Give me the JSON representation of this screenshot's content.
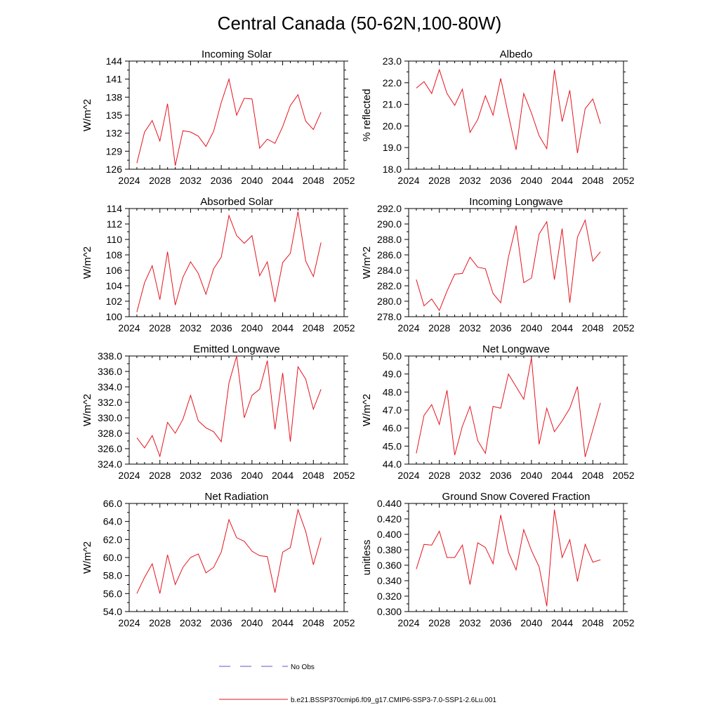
{
  "figure": {
    "title": "Central Canada (50-62N,100-80W)",
    "series_color": "#e4141e",
    "obs_color": "#5a5ac8"
  },
  "legend": {
    "obs_label": "No Obs",
    "model_label": "b.e21.BSSP370cmip6.f09_g17.CMIP6-SSP3-7.0-SSP1-2.6Lu.001"
  },
  "chart_data": [
    {
      "type": "line",
      "title": "Incoming Solar",
      "ylabel": "W/m^2",
      "xlim": [
        2024,
        2052
      ],
      "ylim": [
        126,
        144
      ],
      "xticks": [
        2024,
        2028,
        2032,
        2036,
        2040,
        2044,
        2048,
        2052
      ],
      "xtick_labels": [
        "2024",
        "2028",
        "2032",
        "2036",
        "2040",
        "2044",
        "2048",
        "2052"
      ],
      "yticks": [
        126,
        129,
        132,
        135,
        138,
        141,
        144
      ],
      "ytick_labels": [
        "126",
        "129",
        "132",
        "135",
        "138",
        "141",
        "144"
      ],
      "x": [
        2025,
        2026,
        2027,
        2028,
        2029,
        2030,
        2031,
        2032,
        2033,
        2034,
        2035,
        2036,
        2037,
        2038,
        2039,
        2040,
        2041,
        2042,
        2043,
        2044,
        2045,
        2046,
        2047,
        2048,
        2049
      ],
      "values": [
        127.0,
        132.2,
        134.1,
        130.7,
        136.9,
        126.6,
        132.4,
        132.2,
        131.5,
        129.8,
        132.3,
        137.1,
        141.0,
        135.0,
        137.8,
        137.7,
        129.5,
        131.0,
        130.3,
        133.1,
        136.6,
        138.4,
        134.0,
        132.6,
        135.5
      ]
    },
    {
      "type": "line",
      "title": "Albedo",
      "ylabel": "% reflected",
      "xlim": [
        2024,
        2052
      ],
      "ylim": [
        18.0,
        23.0
      ],
      "xticks": [
        2024,
        2028,
        2032,
        2036,
        2040,
        2044,
        2048,
        2052
      ],
      "xtick_labels": [
        "2024",
        "2028",
        "2032",
        "2036",
        "2040",
        "2044",
        "2048",
        "2052"
      ],
      "yticks": [
        18.0,
        19.0,
        20.0,
        21.0,
        22.0,
        23.0
      ],
      "ytick_labels": [
        "18.0",
        "19.0",
        "20.0",
        "21.0",
        "22.0",
        "23.0"
      ],
      "x": [
        2025,
        2026,
        2027,
        2028,
        2029,
        2030,
        2031,
        2032,
        2033,
        2034,
        2035,
        2036,
        2037,
        2038,
        2039,
        2040,
        2041,
        2042,
        2043,
        2044,
        2045,
        2046,
        2047,
        2048,
        2049
      ],
      "values": [
        21.75,
        22.05,
        21.5,
        22.6,
        21.5,
        20.95,
        21.7,
        19.7,
        20.3,
        21.4,
        20.5,
        22.2,
        20.5,
        18.9,
        21.5,
        20.6,
        19.55,
        18.95,
        22.6,
        20.2,
        21.65,
        18.75,
        20.8,
        21.25,
        20.1
      ]
    },
    {
      "type": "line",
      "title": "Absorbed Solar",
      "ylabel": "W/m^2",
      "xlim": [
        2024,
        2052
      ],
      "ylim": [
        100,
        114
      ],
      "xticks": [
        2024,
        2028,
        2032,
        2036,
        2040,
        2044,
        2048,
        2052
      ],
      "xtick_labels": [
        "2024",
        "2028",
        "2032",
        "2036",
        "2040",
        "2044",
        "2048",
        "2052"
      ],
      "yticks": [
        100,
        102,
        104,
        106,
        108,
        110,
        112,
        114
      ],
      "ytick_labels": [
        "100",
        "102",
        "104",
        "106",
        "108",
        "110",
        "112",
        "114"
      ],
      "x": [
        2025,
        2026,
        2027,
        2028,
        2029,
        2030,
        2031,
        2032,
        2033,
        2034,
        2035,
        2036,
        2037,
        2038,
        2039,
        2040,
        2041,
        2042,
        2043,
        2044,
        2045,
        2046,
        2047,
        2048,
        2049
      ],
      "values": [
        100.6,
        104.4,
        106.6,
        102.2,
        108.4,
        101.5,
        105.1,
        107.1,
        105.6,
        102.9,
        106.2,
        107.7,
        113.1,
        110.5,
        109.5,
        110.5,
        105.3,
        107.1,
        101.9,
        107.0,
        108.2,
        113.6,
        107.2,
        105.2,
        109.6
      ]
    },
    {
      "type": "line",
      "title": "Incoming Longwave",
      "ylabel": "W/m^2",
      "xlim": [
        2024,
        2052
      ],
      "ylim": [
        278.0,
        292.0
      ],
      "xticks": [
        2024,
        2028,
        2032,
        2036,
        2040,
        2044,
        2048,
        2052
      ],
      "xtick_labels": [
        "2024",
        "2028",
        "2032",
        "2036",
        "2040",
        "2044",
        "2048",
        "2052"
      ],
      "yticks": [
        278.0,
        280.0,
        282.0,
        284.0,
        286.0,
        288.0,
        290.0,
        292.0
      ],
      "ytick_labels": [
        "278.0",
        "280.0",
        "282.0",
        "284.0",
        "286.0",
        "288.0",
        "290.0",
        "292.0"
      ],
      "x": [
        2025,
        2026,
        2027,
        2028,
        2029,
        2030,
        2031,
        2032,
        2033,
        2034,
        2035,
        2036,
        2037,
        2038,
        2039,
        2040,
        2041,
        2042,
        2043,
        2044,
        2045,
        2046,
        2047,
        2048,
        2049
      ],
      "values": [
        282.8,
        279.4,
        280.3,
        278.8,
        281.3,
        283.5,
        283.6,
        285.7,
        284.4,
        284.2,
        281.0,
        279.8,
        285.7,
        289.8,
        282.4,
        283.0,
        288.7,
        290.3,
        282.8,
        289.4,
        279.8,
        288.3,
        290.5,
        285.2,
        286.4
      ]
    },
    {
      "type": "line",
      "title": "Emitted Longwave",
      "ylabel": "W/m^2",
      "xlim": [
        2024,
        2052
      ],
      "ylim": [
        324.0,
        338.0
      ],
      "xticks": [
        2024,
        2028,
        2032,
        2036,
        2040,
        2044,
        2048,
        2052
      ],
      "xtick_labels": [
        "2024",
        "2028",
        "2032",
        "2036",
        "2040",
        "2044",
        "2048",
        "2052"
      ],
      "yticks": [
        324.0,
        326.0,
        328.0,
        330.0,
        332.0,
        334.0,
        336.0,
        338.0
      ],
      "ytick_labels": [
        "324.0",
        "326.0",
        "328.0",
        "330.0",
        "332.0",
        "334.0",
        "336.0",
        "338.0"
      ],
      "x": [
        2025,
        2026,
        2027,
        2028,
        2029,
        2030,
        2031,
        2032,
        2033,
        2034,
        2035,
        2036,
        2037,
        2038,
        2039,
        2040,
        2041,
        2042,
        2043,
        2044,
        2045,
        2046,
        2047,
        2048,
        2049
      ],
      "values": [
        327.4,
        326.1,
        327.7,
        325.0,
        329.4,
        328.0,
        329.8,
        332.9,
        329.6,
        328.7,
        328.2,
        326.9,
        334.5,
        338.0,
        330.0,
        332.9,
        333.7,
        337.4,
        328.5,
        335.8,
        326.9,
        336.6,
        335.0,
        331.1,
        333.7
      ]
    },
    {
      "type": "line",
      "title": "Net Longwave",
      "ylabel": "W/m^2",
      "xlim": [
        2024,
        2052
      ],
      "ylim": [
        44.0,
        50.0
      ],
      "xticks": [
        2024,
        2028,
        2032,
        2036,
        2040,
        2044,
        2048,
        2052
      ],
      "xtick_labels": [
        "2024",
        "2028",
        "2032",
        "2036",
        "2040",
        "2044",
        "2048",
        "2052"
      ],
      "yticks": [
        44.0,
        45.0,
        46.0,
        47.0,
        48.0,
        49.0,
        50.0
      ],
      "ytick_labels": [
        "44.0",
        "45.0",
        "46.0",
        "47.0",
        "48.0",
        "49.0",
        "50.0"
      ],
      "x": [
        2025,
        2026,
        2027,
        2028,
        2029,
        2030,
        2031,
        2032,
        2033,
        2034,
        2035,
        2036,
        2037,
        2038,
        2039,
        2040,
        2041,
        2042,
        2043,
        2044,
        2045,
        2046,
        2047,
        2048,
        2049
      ],
      "values": [
        44.6,
        46.7,
        47.3,
        46.2,
        48.1,
        44.5,
        46.1,
        47.2,
        45.3,
        44.6,
        47.2,
        47.1,
        49.0,
        48.3,
        47.6,
        49.9,
        45.1,
        47.1,
        45.8,
        46.4,
        47.1,
        48.3,
        44.4,
        45.9,
        47.4
      ]
    },
    {
      "type": "line",
      "title": "Net Radiation",
      "ylabel": "W/m^2",
      "xlim": [
        2024,
        2052
      ],
      "ylim": [
        54.0,
        66.0
      ],
      "xticks": [
        2024,
        2028,
        2032,
        2036,
        2040,
        2044,
        2048,
        2052
      ],
      "xtick_labels": [
        "2024",
        "2028",
        "2032",
        "2036",
        "2040",
        "2044",
        "2048",
        "2052"
      ],
      "yticks": [
        54.0,
        56.0,
        58.0,
        60.0,
        62.0,
        64.0,
        66.0
      ],
      "ytick_labels": [
        "54.0",
        "56.0",
        "58.0",
        "60.0",
        "62.0",
        "64.0",
        "66.0"
      ],
      "x": [
        2025,
        2026,
        2027,
        2028,
        2029,
        2030,
        2031,
        2032,
        2033,
        2034,
        2035,
        2036,
        2037,
        2038,
        2039,
        2040,
        2041,
        2042,
        2043,
        2044,
        2045,
        2046,
        2047,
        2048,
        2049
      ],
      "values": [
        56.0,
        57.8,
        59.3,
        56.0,
        60.3,
        57.0,
        58.9,
        60.0,
        60.4,
        58.3,
        58.9,
        60.6,
        64.2,
        62.2,
        61.8,
        60.7,
        60.2,
        60.1,
        56.1,
        60.6,
        61.1,
        65.3,
        62.9,
        59.2,
        62.2
      ]
    },
    {
      "type": "line",
      "title": "Ground Snow Covered Fraction",
      "ylabel": "unitless",
      "xlim": [
        2024,
        2052
      ],
      "ylim": [
        0.3,
        0.44
      ],
      "xticks": [
        2024,
        2028,
        2032,
        2036,
        2040,
        2044,
        2048,
        2052
      ],
      "xtick_labels": [
        "2024",
        "2028",
        "2032",
        "2036",
        "2040",
        "2044",
        "2048",
        "2052"
      ],
      "yticks": [
        0.3,
        0.32,
        0.34,
        0.36,
        0.38,
        0.4,
        0.42,
        0.44
      ],
      "ytick_labels": [
        "0.300",
        "0.320",
        "0.340",
        "0.360",
        "0.380",
        "0.400",
        "0.420",
        "0.440"
      ],
      "x": [
        2025,
        2026,
        2027,
        2028,
        2029,
        2030,
        2031,
        2032,
        2033,
        2034,
        2035,
        2036,
        2037,
        2038,
        2039,
        2040,
        2041,
        2042,
        2043,
        2044,
        2045,
        2046,
        2047,
        2048,
        2049
      ],
      "values": [
        0.355,
        0.387,
        0.386,
        0.404,
        0.37,
        0.37,
        0.386,
        0.335,
        0.389,
        0.383,
        0.362,
        0.425,
        0.377,
        0.354,
        0.406,
        0.379,
        0.358,
        0.307,
        0.432,
        0.37,
        0.393,
        0.339,
        0.387,
        0.364,
        0.367
      ]
    }
  ]
}
